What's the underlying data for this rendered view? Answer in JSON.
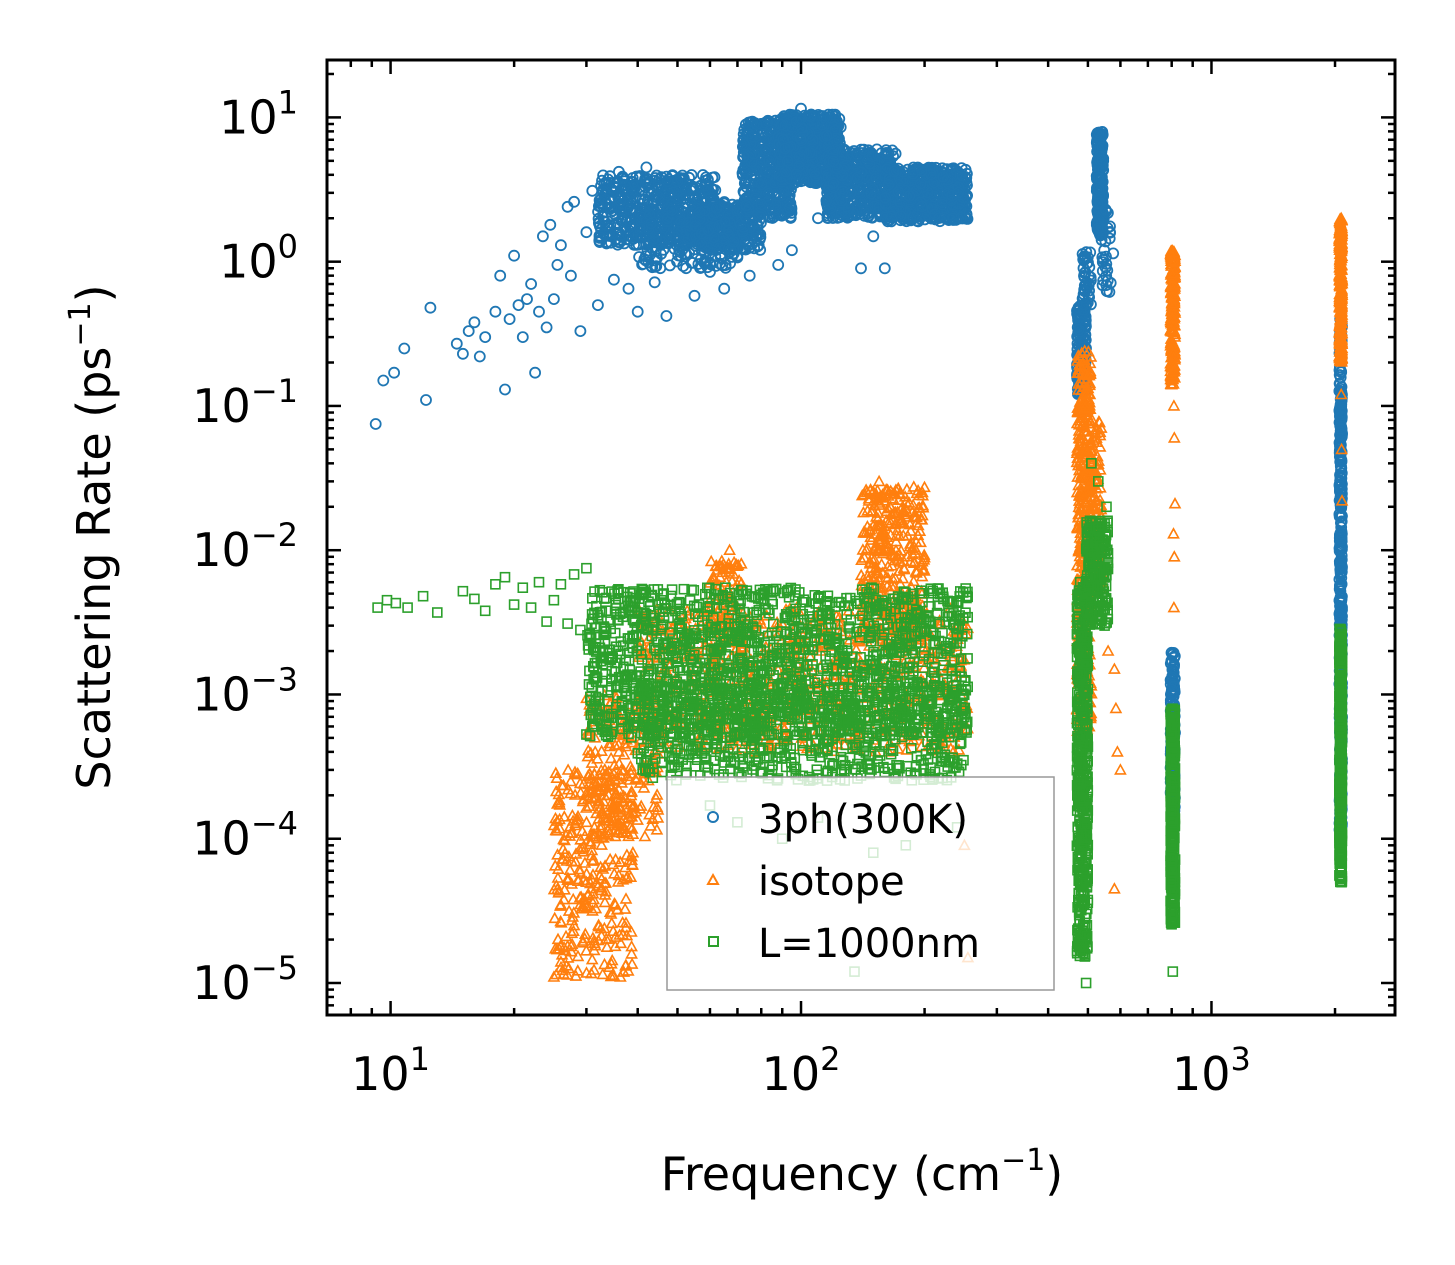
{
  "chart_data": {
    "type": "scatter",
    "xscale": "log",
    "yscale": "log",
    "xlim": [
      7,
      2800
    ],
    "ylim": [
      6e-06,
      25
    ],
    "xlabel": "Frequency (cm",
    "xlabel_sup": "−1",
    "xlabel_close": ")",
    "ylabel": "Scattering Rate (ps",
    "ylabel_sup": "−1",
    "ylabel_close": ")",
    "x_ticks": [
      {
        "value": 10,
        "base": "10",
        "exp": "1"
      },
      {
        "value": 100,
        "base": "10",
        "exp": "2"
      },
      {
        "value": 1000,
        "base": "10",
        "exp": "3"
      }
    ],
    "y_ticks": [
      {
        "value": 10,
        "base": "10",
        "exp": "1"
      },
      {
        "value": 1,
        "base": "10",
        "exp": "0"
      },
      {
        "value": 0.1,
        "base": "10",
        "exp": "−1"
      },
      {
        "value": 0.01,
        "base": "10",
        "exp": "−2"
      },
      {
        "value": 0.001,
        "base": "10",
        "exp": "−3"
      },
      {
        "value": 0.0001,
        "base": "10",
        "exp": "−4"
      },
      {
        "value": 1e-05,
        "base": "10",
        "exp": "−5"
      }
    ],
    "legend_position": "lower-center",
    "series": [
      {
        "name": "3ph(300K)",
        "marker": "circle",
        "color": "#1f77b4",
        "points": [
          [
            9.2,
            0.075
          ],
          [
            9.6,
            0.15
          ],
          [
            10.2,
            0.17
          ],
          [
            10.8,
            0.25
          ],
          [
            12.2,
            0.11
          ],
          [
            12.5,
            0.48
          ],
          [
            14.5,
            0.27
          ],
          [
            15,
            0.23
          ],
          [
            15.5,
            0.33
          ],
          [
            16,
            0.38
          ],
          [
            16.5,
            0.22
          ],
          [
            17,
            0.3
          ],
          [
            18,
            0.45
          ],
          [
            18.5,
            0.8
          ],
          [
            19,
            0.13
          ],
          [
            19.5,
            0.4
          ],
          [
            20,
            1.1
          ],
          [
            20.5,
            0.5
          ],
          [
            21,
            0.3
          ],
          [
            21.5,
            0.55
          ],
          [
            22,
            0.7
          ],
          [
            22.5,
            0.17
          ],
          [
            23,
            0.45
          ],
          [
            23.5,
            1.5
          ],
          [
            24,
            0.35
          ],
          [
            24.5,
            1.8
          ],
          [
            25,
            0.55
          ],
          [
            25.5,
            0.95
          ],
          [
            26,
            1.3
          ],
          [
            27,
            2.4
          ],
          [
            27.5,
            0.8
          ],
          [
            28,
            2.6
          ],
          [
            29,
            0.33
          ],
          [
            30,
            1.6
          ],
          [
            31,
            3.1
          ],
          [
            32,
            0.5
          ],
          [
            33,
            2.2
          ],
          [
            35,
            0.75
          ],
          [
            36,
            4.2
          ],
          [
            38,
            0.65
          ],
          [
            40,
            0.45
          ],
          [
            42,
            4.5
          ],
          [
            44,
            0.72
          ],
          [
            47,
            0.42
          ],
          [
            50,
            3.6
          ],
          [
            55,
            0.58
          ],
          [
            60,
            0.85
          ],
          [
            65,
            0.65
          ],
          [
            70,
            1.1
          ],
          [
            75,
            0.8
          ],
          [
            80,
            2.5
          ],
          [
            88,
            0.95
          ],
          [
            95,
            1.2
          ],
          [
            100,
            11.5
          ],
          [
            110,
            2
          ],
          [
            120,
            3.5
          ],
          [
            140,
            0.9
          ],
          [
            150,
            1.5
          ],
          [
            160,
            0.9
          ]
        ],
        "bands": [
          {
            "x": [
              32,
              62
            ],
            "y": [
              1.3,
              4.0
            ],
            "n": 500
          },
          {
            "x": [
              40,
              70
            ],
            "y": [
              0.9,
              2.5
            ],
            "n": 200
          },
          {
            "x": [
              55,
              80
            ],
            "y": [
              1.2,
              2.6
            ],
            "n": 260
          },
          {
            "x": [
              72,
              95
            ],
            "y": [
              2.0,
              9.5
            ],
            "n": 420
          },
          {
            "x": [
              88,
              125
            ],
            "y": [
              3.5,
              10.5
            ],
            "n": 520
          },
          {
            "x": [
              115,
              170
            ],
            "y": [
              2.0,
              6.0
            ],
            "n": 480
          },
          {
            "x": [
              160,
              255
            ],
            "y": [
              1.9,
              4.5
            ],
            "n": 500
          },
          {
            "x": [
              470,
              495
            ],
            "y": [
              0.12,
              0.5
            ],
            "n": 140
          },
          {
            "x": [
              485,
              510
            ],
            "y": [
              0.5,
              1.2
            ],
            "n": 40
          },
          {
            "x": [
              525,
              545
            ],
            "y": [
              1.5,
              8
            ],
            "n": 200
          },
          {
            "x": [
              540,
              580
            ],
            "y": [
              0.6,
              2.5
            ],
            "n": 30
          },
          {
            "x": [
              795,
              815
            ],
            "y": [
              0.00015,
              0.002
            ],
            "n": 160
          },
          {
            "x": [
              2050,
              2080
            ],
            "y": [
              0.0001,
              0.4
            ],
            "n": 420
          }
        ]
      },
      {
        "name": "isotope",
        "marker": "triangle",
        "color": "#ff7f0e",
        "points": [
          [
            25,
            1.1e-05
          ],
          [
            26,
            1.4e-05
          ],
          [
            27,
            1.8e-05
          ],
          [
            28,
            2.5e-05
          ],
          [
            29,
            3.5e-05
          ],
          [
            30,
            5e-05
          ],
          [
            31,
            7e-05
          ],
          [
            32,
            0.0001
          ],
          [
            33,
            0.00014
          ],
          [
            34,
            0.0002
          ],
          [
            35,
            0.00028
          ],
          [
            36,
            0.0004
          ],
          [
            37,
            0.00055
          ],
          [
            38,
            0.0007
          ],
          [
            67,
            0.01
          ],
          [
            155,
            0.03
          ],
          [
            160,
            0.022
          ],
          [
            175,
            0.019
          ],
          [
            250,
            9e-05
          ],
          [
            255,
            1.5e-05
          ],
          [
            560,
            0.002
          ],
          [
            580,
            0.0015
          ],
          [
            585,
            0.0008
          ],
          [
            590,
            0.0004
          ],
          [
            600,
            0.0003
          ],
          [
            580,
            4.5e-05
          ],
          [
            810,
            0.1
          ],
          [
            812,
            0.06
          ],
          [
            815,
            0.021
          ],
          [
            808,
            0.013
          ],
          [
            812,
            0.009
          ],
          [
            810,
            0.004
          ],
          [
            2080,
            0.022
          ],
          [
            2075,
            0.05
          ],
          [
            2070,
            0.12
          ]
        ],
        "bands": [
          {
            "x": [
              25,
              39
            ],
            "y": [
              1.1e-05,
              0.0003
            ],
            "n": 300
          },
          {
            "x": [
              30,
              45
            ],
            "y": [
              0.0001,
              0.001
            ],
            "n": 200
          },
          {
            "x": [
              40,
              255
            ],
            "y": [
              0.0004,
              0.004
            ],
            "n": 700
          },
          {
            "x": [
              60,
              72
            ],
            "y": [
              0.0015,
              0.009
            ],
            "n": 100
          },
          {
            "x": [
              140,
              200
            ],
            "y": [
              0.0025,
              0.028
            ],
            "n": 350
          },
          {
            "x": [
              470,
              510
            ],
            "y": [
              0.0005,
              0.25
            ],
            "n": 420
          },
          {
            "x": [
              505,
              540
            ],
            "y": [
              0.005,
              0.08
            ],
            "n": 120
          },
          {
            "x": [
              795,
              815
            ],
            "y": [
              0.14,
              1.2
            ],
            "n": 220
          },
          {
            "x": [
              2050,
              2080
            ],
            "y": [
              0.2,
              2.0
            ],
            "n": 300
          }
        ]
      },
      {
        "name": "L=1000nm",
        "marker": "square",
        "color": "#2ca02c",
        "points": [
          [
            9.3,
            0.004
          ],
          [
            9.8,
            0.0045
          ],
          [
            10.3,
            0.0043
          ],
          [
            11,
            0.004
          ],
          [
            12,
            0.0048
          ],
          [
            13,
            0.0037
          ],
          [
            15,
            0.0052
          ],
          [
            16,
            0.0046
          ],
          [
            17,
            0.0038
          ],
          [
            18,
            0.0058
          ],
          [
            19,
            0.0065
          ],
          [
            20,
            0.0042
          ],
          [
            21,
            0.0055
          ],
          [
            22,
            0.004
          ],
          [
            23,
            0.006
          ],
          [
            24,
            0.0032
          ],
          [
            25,
            0.0045
          ],
          [
            26,
            0.0058
          ],
          [
            27,
            0.0031
          ],
          [
            28,
            0.0068
          ],
          [
            29,
            0.0028
          ],
          [
            30,
            0.0075
          ],
          [
            510,
            0.04
          ],
          [
            530,
            0.03
          ],
          [
            555,
            0.02
          ],
          [
            495,
            1e-05
          ],
          [
            805,
            1.2e-05
          ],
          [
            2075,
            5e-05
          ],
          [
            60,
            0.00017
          ],
          [
            70,
            0.00013
          ],
          [
            90,
            0.0001
          ],
          [
            110,
            0.00014
          ],
          [
            135,
            1.2e-05
          ],
          [
            150,
            8e-05
          ],
          [
            180,
            9e-05
          ],
          [
            240,
            0.00012
          ]
        ],
        "bands": [
          {
            "x": [
              30,
              255
            ],
            "y": [
              0.0005,
              0.0055
            ],
            "n": 1500
          },
          {
            "x": [
              40,
              255
            ],
            "y": [
              0.00025,
              0.0012
            ],
            "n": 600
          },
          {
            "x": [
              470,
              500
            ],
            "y": [
              1.5e-05,
              0.006
            ],
            "n": 500
          },
          {
            "x": [
              495,
              560
            ],
            "y": [
              0.003,
              0.016
            ],
            "n": 220
          },
          {
            "x": [
              795,
              815
            ],
            "y": [
              2.5e-05,
              0.0008
            ],
            "n": 350
          },
          {
            "x": [
              2050,
              2080
            ],
            "y": [
              5e-05,
              0.003
            ],
            "n": 380
          }
        ]
      }
    ]
  }
}
